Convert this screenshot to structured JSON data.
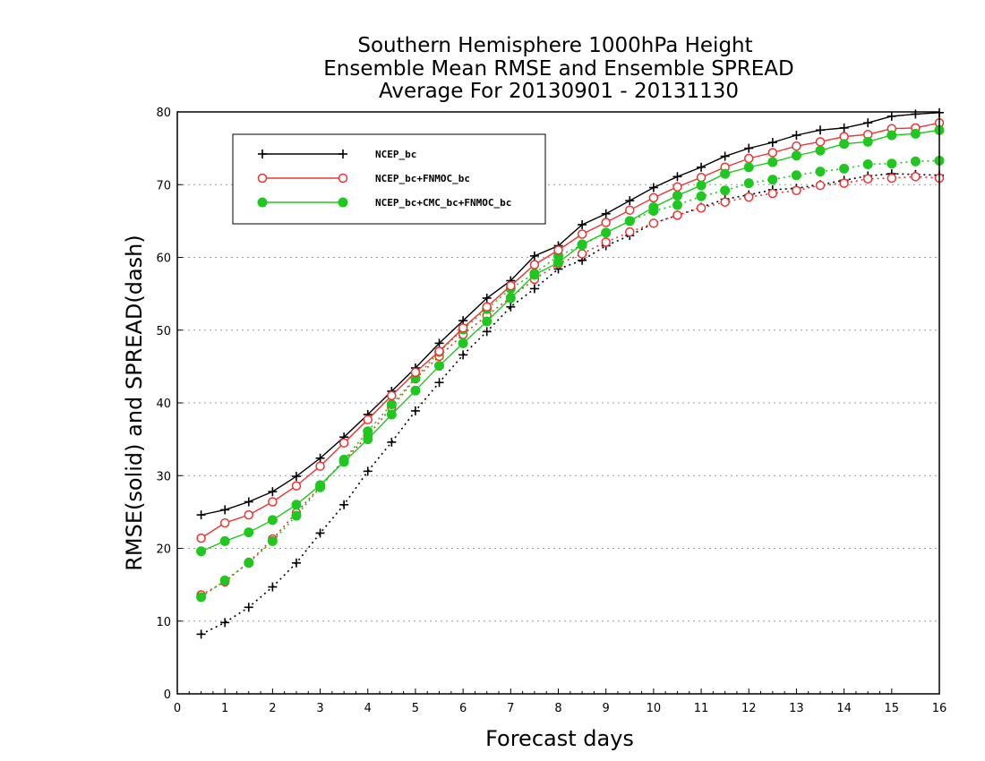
{
  "chart_data": {
    "type": "line",
    "title": [
      "Southern Hemisphere 1000hPa Height",
      "Ensemble Mean RMSE and Ensemble SPREAD",
      "Average For 20130901 - 20131130"
    ],
    "xlabel": "Forecast days",
    "ylabel": "RMSE(solid) and SPREAD(dash)",
    "xlim": [
      0,
      16
    ],
    "ylim": [
      0,
      80
    ],
    "xticks": [
      0,
      1,
      2,
      3,
      4,
      5,
      6,
      7,
      8,
      9,
      10,
      11,
      12,
      13,
      14,
      15,
      16
    ],
    "yticks": [
      0,
      10,
      20,
      30,
      40,
      50,
      60,
      70,
      80
    ],
    "grid": "horizontal dotted",
    "legend": {
      "entries": [
        "NCEP_bc",
        "NCEP_bc+FNMOC_bc",
        "NCEP_bc+CMC_bc+FNMOC_bc"
      ],
      "placement": "top-left"
    },
    "x": [
      0.5,
      1,
      1.5,
      2,
      2.5,
      3,
      3.5,
      4,
      4.5,
      5,
      5.5,
      6,
      6.5,
      7,
      7.5,
      8,
      8.5,
      9,
      9.5,
      10,
      10.5,
      11,
      11.5,
      12,
      12.5,
      13,
      13.5,
      14,
      14.5,
      15,
      15.5,
      16
    ],
    "series": [
      {
        "name": "NCEP_bc",
        "metric": "RMSE",
        "color": "#000000",
        "marker": "plus",
        "style": "solid",
        "values": [
          24.6,
          25.3,
          26.4,
          27.8,
          29.9,
          32.4,
          35.3,
          38.4,
          41.6,
          44.8,
          48.2,
          51.3,
          54.4,
          56.8,
          60.2,
          61.6,
          64.5,
          66.0,
          67.8,
          69.6,
          71.1,
          72.4,
          73.9,
          75.0,
          75.8,
          76.8,
          77.5,
          77.8,
          78.5,
          79.4,
          79.7,
          79.9
        ]
      },
      {
        "name": "NCEP_bc+FNMOC_bc",
        "metric": "RMSE",
        "color": "#ee3333",
        "marker": "open-circle",
        "style": "solid",
        "values": [
          21.4,
          23.5,
          24.6,
          26.4,
          28.6,
          31.3,
          34.5,
          37.7,
          41.0,
          44.2,
          47.1,
          50.3,
          53.2,
          56.1,
          59.0,
          61.0,
          63.2,
          64.8,
          66.5,
          68.2,
          69.7,
          71.0,
          72.4,
          73.6,
          74.4,
          75.3,
          75.9,
          76.6,
          76.9,
          77.7,
          77.8,
          78.5
        ]
      },
      {
        "name": "NCEP_bc+CMC_bc+FNMOC_bc",
        "metric": "RMSE",
        "color": "#1ec81e",
        "marker": "filled-circle",
        "style": "solid",
        "values": [
          19.6,
          21.0,
          22.2,
          23.9,
          26.0,
          28.7,
          31.9,
          35.0,
          38.4,
          41.7,
          45.1,
          48.2,
          51.2,
          54.4,
          57.6,
          59.3,
          61.8,
          63.4,
          65.0,
          66.9,
          68.5,
          69.9,
          71.5,
          72.4,
          73.1,
          74.0,
          74.7,
          75.6,
          75.9,
          76.8,
          77.0,
          77.5
        ]
      },
      {
        "name": "NCEP_bc",
        "metric": "SPREAD",
        "color": "#000000",
        "marker": "plus",
        "style": "dotted",
        "values": [
          8.2,
          9.8,
          11.9,
          14.7,
          18.0,
          22.1,
          26.0,
          30.6,
          34.6,
          38.9,
          42.8,
          46.6,
          49.8,
          53.2,
          55.7,
          58.4,
          59.6,
          61.6,
          63.0,
          64.7,
          65.8,
          66.9,
          68.0,
          68.6,
          69.3,
          69.5,
          70.0,
          70.6,
          71.2,
          71.5,
          71.4,
          71.3
        ]
      },
      {
        "name": "NCEP_bc+FNMOC_bc",
        "metric": "SPREAD",
        "color": "#ee3333",
        "marker": "open-circle",
        "style": "dotted",
        "values": [
          13.6,
          15.4,
          18.1,
          21.3,
          24.9,
          28.5,
          32.1,
          35.5,
          39.4,
          43.3,
          46.4,
          49.4,
          52.0,
          54.5,
          57.0,
          59.1,
          60.5,
          62.1,
          63.5,
          64.7,
          65.8,
          66.8,
          67.6,
          68.3,
          68.8,
          69.2,
          69.9,
          70.2,
          70.8,
          70.9,
          71.1,
          70.9
        ]
      },
      {
        "name": "NCEP_bc+CMC_bc+FNMOC_bc",
        "metric": "SPREAD",
        "color": "#1ec81e",
        "marker": "filled-circle",
        "style": "dotted",
        "values": [
          13.3,
          15.6,
          18.0,
          21.0,
          24.5,
          28.4,
          32.2,
          36.1,
          39.8,
          43.4,
          47.0,
          50.1,
          52.9,
          55.7,
          57.8,
          60.2,
          61.7,
          63.4,
          65.0,
          66.4,
          67.2,
          68.4,
          69.2,
          70.2,
          70.7,
          71.3,
          71.8,
          72.2,
          72.8,
          72.9,
          73.2,
          73.3
        ]
      }
    ]
  }
}
